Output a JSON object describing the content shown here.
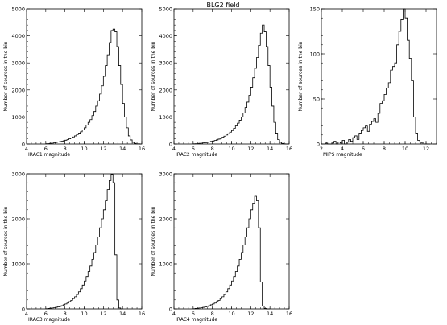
{
  "figure": {
    "title": "BLG2 field"
  },
  "chart_data": [
    {
      "type": "histogram",
      "xlabel": "IRAC1 magnitude",
      "ylabel": "Number of sources in the bin",
      "xlim": [
        4,
        16
      ],
      "ylim": [
        0,
        5000
      ],
      "xticks": [
        4,
        6,
        8,
        10,
        12,
        14,
        16
      ],
      "yticks": [
        0,
        1000,
        2000,
        3000,
        4000,
        5000
      ],
      "bin_width": 0.2,
      "bin_start": 6.0,
      "counts": [
        10,
        15,
        25,
        30,
        40,
        55,
        70,
        85,
        100,
        120,
        140,
        160,
        190,
        220,
        260,
        300,
        350,
        400,
        450,
        520,
        600,
        700,
        800,
        900,
        1050,
        1200,
        1400,
        1600,
        1850,
        2150,
        2500,
        2900,
        3300,
        3750,
        4200,
        4250,
        4150,
        3600,
        2900,
        2200,
        1500,
        1000,
        600,
        300,
        150,
        60,
        20,
        5,
        5,
        0
      ]
    },
    {
      "type": "histogram",
      "xlabel": "IRAC2 magnitude",
      "ylabel": "Number of sources in the bin",
      "xlim": [
        4,
        16
      ],
      "ylim": [
        0,
        5000
      ],
      "xticks": [
        4,
        6,
        8,
        10,
        12,
        14,
        16
      ],
      "yticks": [
        0,
        1000,
        2000,
        3000,
        4000,
        5000
      ],
      "bin_width": 0.2,
      "bin_start": 6.0,
      "counts": [
        5,
        10,
        15,
        25,
        30,
        40,
        50,
        60,
        75,
        95,
        110,
        130,
        150,
        180,
        210,
        250,
        290,
        330,
        380,
        440,
        500,
        580,
        670,
        770,
        880,
        1000,
        1150,
        1350,
        1550,
        1800,
        2100,
        2450,
        2800,
        3200,
        3650,
        4100,
        4400,
        4150,
        3600,
        2900,
        2100,
        1400,
        800,
        400,
        160,
        60,
        20,
        5,
        0,
        0
      ]
    },
    {
      "type": "histogram",
      "xlabel": "MIPS magnitude",
      "ylabel": "Number of sources in the bin",
      "xlim": [
        2,
        13
      ],
      "ylim": [
        0,
        150
      ],
      "xticks": [
        2,
        4,
        6,
        8,
        10,
        12
      ],
      "yticks": [
        0,
        50,
        100,
        150
      ],
      "bin_width": 0.2,
      "bin_start": 2.4,
      "counts": [
        1,
        0,
        0,
        1,
        3,
        0,
        2,
        1,
        4,
        0,
        2,
        5,
        3,
        7,
        9,
        5,
        12,
        15,
        18,
        20,
        14,
        22,
        25,
        28,
        24,
        34,
        45,
        48,
        55,
        62,
        68,
        82,
        86,
        90,
        110,
        125,
        138,
        150,
        140,
        115,
        95,
        70,
        30,
        12,
        4,
        2,
        1,
        0,
        0,
        0
      ]
    },
    {
      "type": "histogram",
      "xlabel": "IRAC3 magnitude",
      "ylabel": "Number of sources in the bin",
      "xlim": [
        4,
        16
      ],
      "ylim": [
        0,
        3000
      ],
      "xticks": [
        4,
        6,
        8,
        10,
        12,
        14,
        16
      ],
      "yticks": [
        0,
        1000,
        2000,
        3000
      ],
      "bin_width": 0.2,
      "bin_start": 6.0,
      "counts": [
        5,
        10,
        15,
        20,
        25,
        35,
        45,
        55,
        70,
        90,
        110,
        130,
        160,
        190,
        230,
        270,
        320,
        380,
        450,
        530,
        620,
        720,
        830,
        950,
        1100,
        1250,
        1420,
        1600,
        1800,
        2000,
        2200,
        2400,
        2650,
        2850,
        2990,
        2800,
        1200,
        200,
        20,
        0
      ]
    },
    {
      "type": "histogram",
      "xlabel": "IRAC4 magnitude",
      "ylabel": "Number of sources in the bin",
      "xlim": [
        4,
        16
      ],
      "ylim": [
        0,
        3000
      ],
      "xticks": [
        4,
        6,
        8,
        10,
        12,
        14,
        16
      ],
      "yticks": [
        0,
        1000,
        2000,
        3000
      ],
      "bin_width": 0.2,
      "bin_start": 6.0,
      "counts": [
        5,
        10,
        15,
        20,
        25,
        35,
        45,
        55,
        70,
        90,
        110,
        130,
        160,
        190,
        230,
        270,
        320,
        380,
        450,
        530,
        620,
        720,
        830,
        950,
        1100,
        1250,
        1420,
        1600,
        1800,
        2000,
        2200,
        2350,
        2500,
        2400,
        1800,
        600,
        60,
        10,
        0,
        0
      ]
    }
  ]
}
